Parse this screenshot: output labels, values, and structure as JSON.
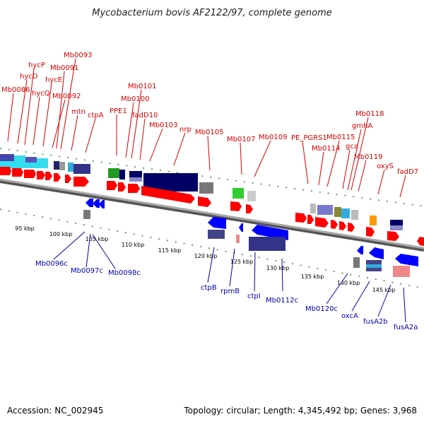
{
  "title": "Mycobacterium bovis AF2122/97, complete genome",
  "footer": {
    "accession": "Accession: NC_002945",
    "summary": "Topology: circular; Length: 4,345,492 bp; Genes: 3,968"
  },
  "colors": {
    "forward_gene": "#ff0000",
    "reverse_gene": "#0000ff",
    "top_label": "#d40000",
    "bottom_label": "#0000aa",
    "backbone": "#888888",
    "tick": "#229922"
  },
  "scale_labels": [
    "95 kbp",
    "100 kbp",
    "105 kbp",
    "110 kbp",
    "115 kbp",
    "120 kbp",
    "125 kbp",
    "130 kbp",
    "135 kbp",
    "140 kbp",
    "145 kbp"
  ],
  "top_labels": [
    "Mb0086",
    "hycD",
    "hycQ",
    "hycP",
    "hycE",
    "Mb0092",
    "Mb0091",
    "Mb0093",
    "mtn",
    "ctpA",
    "PPE1",
    "Mb0100",
    "Mb0101",
    "fadD10",
    "Mb0103",
    "nrp",
    "Mb0105",
    "Mb0107",
    "Mb0109",
    "PE_PGRS1",
    "Mb0114",
    "Mb0115",
    "gca",
    "gmhA",
    "Mb0118",
    "Mb0119",
    "oxyS",
    "fadD7"
  ],
  "bottom_labels": [
    "Mb0096c",
    "Mb0097c",
    "Mb0098c",
    "ctpB",
    "rpmB",
    "ctpI",
    "Mb0112c",
    "Mb0120c",
    "oxcA",
    "fusA2b",
    "fusA2a"
  ]
}
